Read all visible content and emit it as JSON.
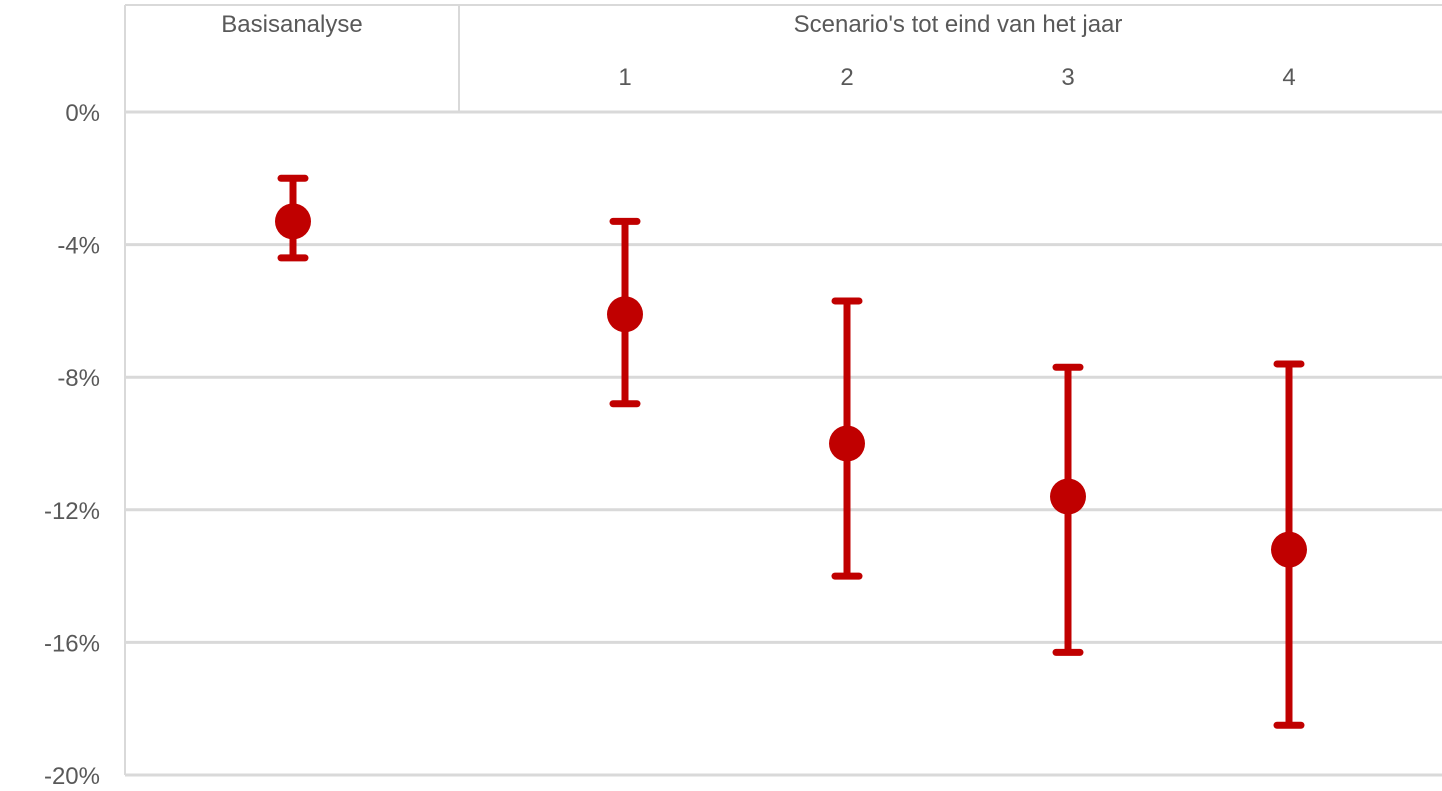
{
  "chart_data": {
    "type": "scatter",
    "groups": [
      {
        "label": "Basisanalyse",
        "categories": [
          ""
        ]
      },
      {
        "label": "Scenario's tot eind van het jaar",
        "categories": [
          "1",
          "2",
          "3",
          "4"
        ]
      }
    ],
    "series": [
      {
        "values": [
          -3.3,
          -6.1,
          -10.0,
          -11.6,
          -13.2
        ],
        "error_low": [
          -4.4,
          -8.8,
          -14.0,
          -16.3,
          -18.5
        ],
        "error_high": [
          -2.0,
          -3.3,
          -5.7,
          -7.7,
          -7.6
        ]
      }
    ],
    "ylim": [
      -20,
      0
    ],
    "yticks": [
      0,
      -4,
      -8,
      -12,
      -16,
      -20
    ],
    "ytick_labels": [
      "0%",
      "-4%",
      "-8%",
      "-12%",
      "-16%",
      "-20%"
    ],
    "grid": true,
    "marker_color": "#C00000",
    "grid_color": "#D9D9D9",
    "text_color": "#595959"
  }
}
